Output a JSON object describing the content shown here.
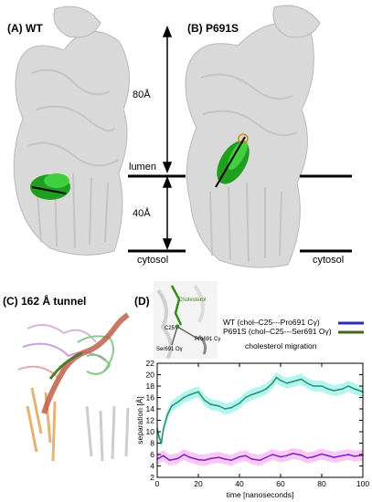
{
  "panels": {
    "a": {
      "label": "(A)  WT"
    },
    "b": {
      "label": "(B)  P691S"
    },
    "c": {
      "label": "(C) 162 Å tunnel"
    },
    "d": {
      "label": "(D)"
    }
  },
  "membrane": {
    "upper_distance": "80Å",
    "lower_distance": "40Å",
    "lumen_label": "lumen",
    "cytosol_left": "cytosol",
    "cytosol_right": "cytosol"
  },
  "inset": {
    "cholesterol_label": "Cholesterol",
    "c25_label": "C25",
    "pro_label": "Pro691 Cγ",
    "ser_label": "Ser691 Oγ"
  },
  "legend": {
    "wt": "WT (chol–C25---Pro691 Cγ)",
    "p691s": "P691S (chol–C25---Ser691 Oγ)",
    "caption": "cholesterol migration",
    "wt_color": "#2b2bb5",
    "p691s_color": "#3d6b16"
  },
  "chart_data": {
    "type": "line",
    "xlabel": "time  [nanoseconds]",
    "ylabel": "separation [Å]",
    "xlim": [
      0,
      100
    ],
    "ylim": [
      2,
      22
    ],
    "x_ticks": [
      0,
      20,
      40,
      60,
      80,
      100
    ],
    "y_ticks": [
      2,
      4,
      6,
      8,
      10,
      12,
      14,
      16,
      18,
      20,
      22
    ],
    "series": [
      {
        "name": "P691S (chol–C25---Ser691 Oγ)",
        "color": "#2e8b70",
        "band_color": "#7ff0e6",
        "x": [
          0,
          1,
          2,
          3,
          5,
          7,
          10,
          13,
          16,
          20,
          23,
          26,
          30,
          33,
          36,
          40,
          43,
          46,
          50,
          53,
          56,
          58,
          60,
          63,
          66,
          70,
          73,
          76,
          80,
          83,
          86,
          90,
          93,
          96,
          100
        ],
        "values": [
          10.5,
          9,
          8,
          10.5,
          13,
          14.5,
          15.2,
          16,
          16.5,
          17,
          15.5,
          14.8,
          14.5,
          14,
          14.2,
          15,
          16,
          16.5,
          17,
          17.5,
          18.5,
          19.5,
          19,
          18.5,
          18.8,
          19.2,
          18.5,
          18,
          18,
          17.5,
          17.2,
          17.5,
          18,
          17.5,
          17
        ]
      },
      {
        "name": "WT (chol–C25---Pro691 Cγ)",
        "color": "#7b22c8",
        "band_color": "#f5a3f2",
        "x": [
          0,
          3,
          6,
          10,
          13,
          16,
          20,
          23,
          26,
          30,
          33,
          36,
          40,
          43,
          46,
          50,
          53,
          56,
          60,
          63,
          66,
          70,
          73,
          76,
          80,
          83,
          86,
          90,
          93,
          96,
          100
        ],
        "values": [
          5.2,
          5.8,
          5,
          5.3,
          6,
          5.5,
          5.1,
          5,
          5.3,
          5.5,
          5.2,
          5,
          5.6,
          5.8,
          5.2,
          5,
          5.5,
          6,
          5.6,
          5.8,
          6.2,
          5.9,
          5.4,
          5.6,
          6.1,
          5.8,
          5.5,
          5.8,
          6,
          5.7,
          5.9
        ]
      }
    ]
  }
}
